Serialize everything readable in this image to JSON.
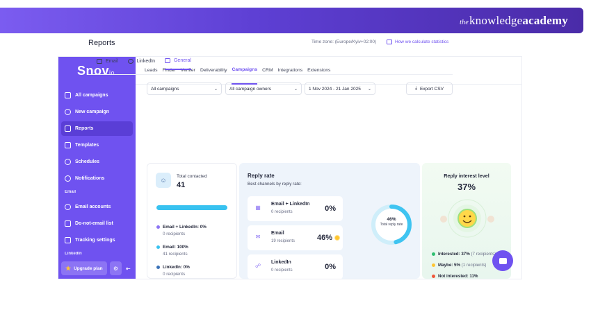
{
  "banner": {
    "brand_prefix": "the",
    "brand_word1": "knowledge",
    "brand_word2": "academy"
  },
  "app": {
    "logo_main": "Snov",
    "logo_suffix": "io",
    "sidebar": {
      "items": [
        {
          "label": "All campaigns",
          "icon": "envelope-icon"
        },
        {
          "label": "New campaign",
          "icon": "plus-circle-icon"
        },
        {
          "label": "Reports",
          "icon": "chart-icon",
          "active": true
        },
        {
          "label": "Templates",
          "icon": "template-icon"
        },
        {
          "label": "Schedules",
          "icon": "clock-icon"
        },
        {
          "label": "Notifications",
          "icon": "bell-icon"
        }
      ],
      "section_email": "Email",
      "email_items": [
        {
          "label": "Email accounts",
          "icon": "users-icon"
        },
        {
          "label": "Do-not-email list",
          "icon": "list-icon"
        },
        {
          "label": "Tracking settings",
          "icon": "mail-settings-icon"
        }
      ],
      "section_linkedin": "LinkedIn",
      "upgrade_label": "Upgrade plan"
    },
    "topnav": [
      "Leads",
      "Finder",
      "Verifier",
      "Deliverability",
      "Campaigns",
      "CRM",
      "Integrations",
      "Extensions"
    ],
    "topnav_active": "Campaigns",
    "page_title": "Reports",
    "timezone": "Time zone: (Europe/Kyiv+02:00)",
    "calc_link": "How we calculate statistics",
    "tabs": [
      "Email",
      "LinkedIn",
      "General"
    ],
    "tab_active": "General",
    "filters": {
      "campaigns": "All campaigns",
      "owners": "All campaign owners",
      "date_range": "1 Nov 2024 - 21 Jan 2025",
      "export": "Export CSV"
    },
    "total_card": {
      "label": "Total contacted",
      "value": "41",
      "legend": [
        {
          "name": "Email + LinkedIn: 0%",
          "sub": "0 recipients",
          "color": "#8c74f4"
        },
        {
          "name": "Email: 100%",
          "sub": "41 recipients",
          "color": "#38c2f0"
        },
        {
          "name": "LinkedIn: 0%",
          "sub": "0 recipients",
          "color": "#3a72b8"
        }
      ]
    },
    "reply_card": {
      "title": "Reply rate",
      "subtitle": "Best channels by reply rate:",
      "channels": [
        {
          "name": "Email + LinkedIn",
          "recipients": "0 recipients",
          "pct": "0%"
        },
        {
          "name": "Email",
          "recipients": "19 recipients",
          "pct": "46%"
        },
        {
          "name": "LinkedIn",
          "recipients": "0 recipients",
          "pct": "0%"
        }
      ],
      "donut_value": "46%",
      "donut_label": "Total reply rate",
      "donut_fraction": 0.46
    },
    "interest_card": {
      "title": "Reply interest level",
      "value": "37%",
      "legend": [
        {
          "label": "Interested: 37%",
          "extra": "(7 recipients)",
          "color": "#2fbf71"
        },
        {
          "label": "Maybe: 5%",
          "extra": "(1 recipients)",
          "color": "#ffc531"
        },
        {
          "label": "Not interested: 11%",
          "extra": "",
          "color": "#f0573b"
        }
      ]
    }
  }
}
